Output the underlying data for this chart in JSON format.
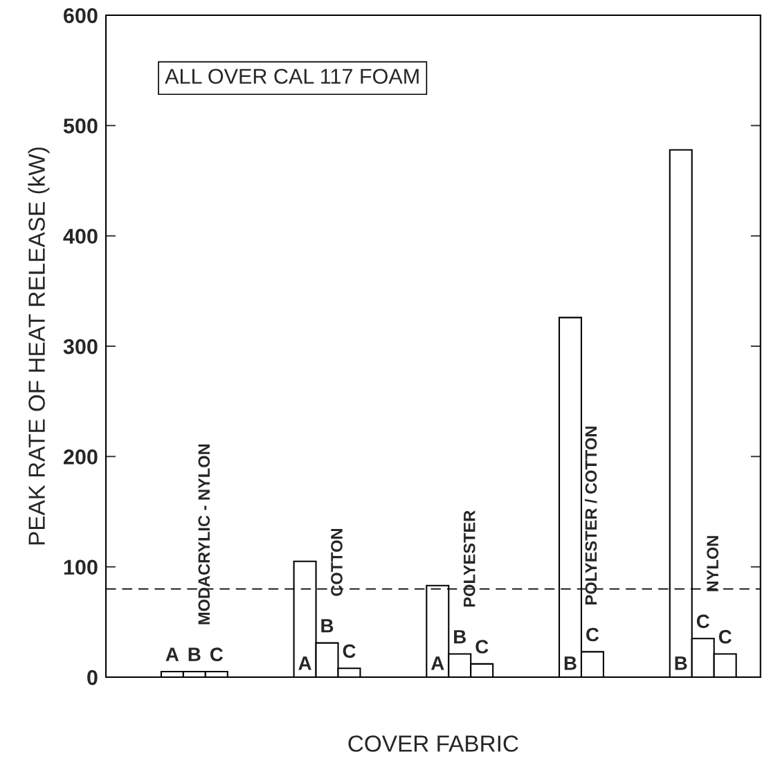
{
  "chart_data": {
    "type": "bar",
    "ylabel": "PEAK RATE OF HEAT RELEASE (kW)",
    "xlabel": "COVER FABRIC",
    "categories": [
      null,
      null,
      null,
      "A",
      "B",
      "C",
      null,
      null,
      null,
      "A",
      "B",
      "C",
      null,
      null,
      null,
      "A",
      "B",
      "C",
      null,
      null,
      null,
      "B",
      "C",
      null,
      null,
      null,
      "B",
      "C",
      "C",
      null
    ],
    "series": [
      {
        "name": "MODACRYLIC - NYLON",
        "color": "#ffffff",
        "values": [
          null,
          null,
          null,
          5,
          5,
          5,
          null,
          null,
          null,
          null,
          null,
          null,
          null,
          null,
          null,
          null,
          null,
          null,
          null,
          null,
          null,
          null,
          null,
          null,
          null,
          null,
          null,
          null,
          null,
          null
        ]
      },
      {
        "name": "COTTON",
        "color": "#ffffff",
        "values": [
          null,
          null,
          null,
          null,
          null,
          null,
          null,
          null,
          null,
          105,
          31,
          8,
          null,
          null,
          null,
          null,
          null,
          null,
          null,
          null,
          null,
          null,
          null,
          null,
          null,
          null,
          null,
          null,
          null,
          null
        ]
      },
      {
        "name": "POLYESTER",
        "color": "#ffffff",
        "values": [
          null,
          null,
          null,
          null,
          null,
          null,
          null,
          null,
          null,
          null,
          null,
          null,
          null,
          null,
          null,
          83,
          21,
          12,
          null,
          null,
          null,
          null,
          null,
          null,
          null,
          null,
          null,
          null,
          null,
          null
        ]
      },
      {
        "name": "POLYESTER / COTTON",
        "color": "#ffffff",
        "values": [
          null,
          null,
          null,
          null,
          null,
          null,
          null,
          null,
          null,
          null,
          null,
          null,
          null,
          null,
          null,
          null,
          null,
          null,
          null,
          null,
          null,
          326,
          23,
          null,
          null,
          null,
          null,
          null,
          null,
          null
        ]
      },
      {
        "name": "NYLON",
        "color": "#ffffff",
        "values": [
          null,
          null,
          null,
          null,
          null,
          null,
          null,
          null,
          null,
          null,
          null,
          null,
          null,
          null,
          null,
          null,
          null,
          null,
          null,
          null,
          null,
          null,
          null,
          null,
          null,
          null,
          478,
          35,
          21,
          null
        ]
      }
    ],
    "ylim": [
      0,
      600
    ],
    "yticks": [
      0,
      100,
      200,
      300,
      400,
      500,
      600
    ],
    "tick_labels": "y",
    "grid": false,
    "legend": false,
    "ref_lines": [
      {
        "axis": "y",
        "value": 80,
        "line_style": "dashed",
        "color": "#000000"
      }
    ],
    "annotations": [
      "ALL OVER CAL 117 FOAM"
    ]
  }
}
